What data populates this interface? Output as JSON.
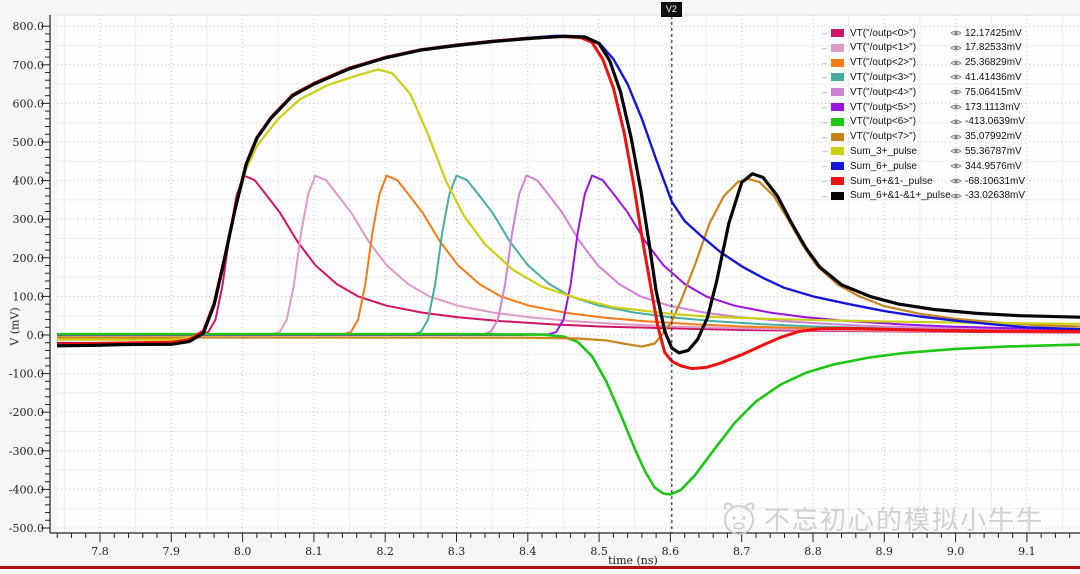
{
  "window": {
    "footer_bar_color": "#b31111"
  },
  "watermark": {
    "text": "不忘初心的模拟小牛牛",
    "logo": "cow-face-logo"
  },
  "chart_data": {
    "type": "line",
    "title": "",
    "xlabel": "time (ns)",
    "ylabel": "V (mV)",
    "xlim": [
      7.74,
      9.175
    ],
    "ylim": [
      -500,
      800
    ],
    "grid": "minor solid + major dotted",
    "legend_position": "top-right",
    "x_tick_values": [
      7.8,
      7.9,
      8.0,
      8.1,
      8.2,
      8.3,
      8.4,
      8.5,
      8.6,
      8.7,
      8.8,
      8.9,
      9.0,
      9.1
    ],
    "x_tick_labels": [
      "7.8",
      "7.9",
      "8.0",
      "8.1",
      "8.2",
      "8.3",
      "8.4",
      "8.5",
      "8.6",
      "8.7",
      "8.8",
      "8.9",
      "9.0",
      "9.1"
    ],
    "y_tick_values": [
      800,
      700,
      600,
      500,
      400,
      300,
      200,
      100,
      0,
      -100,
      -200,
      -300,
      -400,
      -500
    ],
    "y_tick_labels": [
      "800.0",
      "700.0",
      "600.0",
      "500.0",
      "400.0",
      "300.0",
      "200.0",
      "100.0",
      "0.0",
      "-100.0",
      "-200.0",
      "-300.0",
      "-400.0",
      "-500.0"
    ],
    "marker": {
      "label": "V2",
      "time": 8.602
    },
    "pulse_shape": [
      [
        -1,
        0
      ],
      [
        -0.1,
        0
      ],
      [
        -0.06,
        2
      ],
      [
        -0.05,
        8
      ],
      [
        -0.04,
        40
      ],
      [
        -0.03,
        130
      ],
      [
        -0.02,
        265
      ],
      [
        -0.01,
        365
      ],
      [
        0,
        413
      ],
      [
        0.015,
        401
      ],
      [
        0.03,
        366
      ],
      [
        0.05,
        318
      ],
      [
        0.075,
        242
      ],
      [
        0.1,
        181
      ],
      [
        0.13,
        132
      ],
      [
        0.16,
        100
      ],
      [
        0.2,
        76
      ],
      [
        0.25,
        58
      ],
      [
        0.3,
        46
      ],
      [
        0.36,
        36
      ],
      [
        0.43,
        28
      ],
      [
        0.5,
        22
      ],
      [
        0.6,
        17
      ],
      [
        0.7,
        13
      ],
      [
        0.85,
        10
      ],
      [
        1,
        8
      ],
      [
        1.2,
        6
      ]
    ],
    "series": [
      {
        "id": "outp0",
        "name": "VT(\"/outp<0>\")",
        "color": "#d01467",
        "width": 2,
        "pulse_t0": 8.002,
        "readout": "12.17425mV"
      },
      {
        "id": "outp1",
        "name": "VT(\"/outp<1>\")",
        "color": "#df9aca",
        "width": 2,
        "pulse_t0": 8.102,
        "readout": "17.82533mV"
      },
      {
        "id": "outp2",
        "name": "VT(\"/outp<2>\")",
        "color": "#f57b16",
        "width": 2,
        "pulse_t0": 8.202,
        "readout": "25.36829mV"
      },
      {
        "id": "outp3",
        "name": "VT(\"/outp<3>\")",
        "color": "#46ada3",
        "width": 2,
        "pulse_t0": 8.3,
        "readout": "41.41436mV"
      },
      {
        "id": "outp4",
        "name": "VT(\"/outp<4>\")",
        "color": "#d083d6",
        "width": 2,
        "pulse_t0": 8.398,
        "readout": "75.06415mV"
      },
      {
        "id": "outp5",
        "name": "VT(\"/outp<5>\")",
        "color": "#9b14e0",
        "width": 2,
        "pulse_t0": 8.49,
        "readout": "173.1113mV"
      },
      {
        "id": "outp6",
        "name": "VT(\"/outp<6>\")",
        "color": "#1ec616",
        "width": 2.6,
        "readout": "-413.0639mV",
        "points": [
          [
            7.74,
            2
          ],
          [
            8.3,
            2
          ],
          [
            8.42,
            1
          ],
          [
            8.45,
            -4
          ],
          [
            8.47,
            -18
          ],
          [
            8.49,
            -55
          ],
          [
            8.51,
            -120
          ],
          [
            8.53,
            -205
          ],
          [
            8.55,
            -295
          ],
          [
            8.565,
            -355
          ],
          [
            8.578,
            -395
          ],
          [
            8.59,
            -411
          ],
          [
            8.6,
            -413
          ],
          [
            8.615,
            -401
          ],
          [
            8.635,
            -362
          ],
          [
            8.66,
            -300
          ],
          [
            8.69,
            -228
          ],
          [
            8.72,
            -172
          ],
          [
            8.755,
            -128
          ],
          [
            8.79,
            -98
          ],
          [
            8.83,
            -76
          ],
          [
            8.88,
            -58
          ],
          [
            8.93,
            -46
          ],
          [
            9,
            -36
          ],
          [
            9.07,
            -30
          ],
          [
            9.175,
            -25
          ]
        ]
      },
      {
        "id": "outp7",
        "name": "VT(\"/outp<7>\")",
        "color": "#c8841a",
        "width": 2.2,
        "readout": "35.07992mV",
        "points": [
          [
            7.74,
            -6
          ],
          [
            8.4,
            -7
          ],
          [
            8.47,
            -9
          ],
          [
            8.51,
            -14
          ],
          [
            8.54,
            -24
          ],
          [
            8.56,
            -30
          ],
          [
            8.578,
            -22
          ],
          [
            8.59,
            5
          ],
          [
            8.602,
            35
          ],
          [
            8.615,
            90
          ],
          [
            8.635,
            185
          ],
          [
            8.655,
            290
          ],
          [
            8.675,
            360
          ],
          [
            8.695,
            397
          ],
          [
            8.71,
            404
          ],
          [
            8.725,
            396
          ],
          [
            8.745,
            360
          ],
          [
            8.765,
            300
          ],
          [
            8.785,
            235
          ],
          [
            8.805,
            180
          ],
          [
            8.835,
            130
          ],
          [
            8.865,
            100
          ],
          [
            8.9,
            75
          ],
          [
            8.95,
            55
          ],
          [
            9,
            42
          ],
          [
            9.06,
            32
          ],
          [
            9.12,
            25
          ],
          [
            9.175,
            22
          ]
        ]
      },
      {
        "id": "sum3",
        "name": "Sum_3+_pulse",
        "color": "#cdd011",
        "width": 2.2,
        "readout": "55.36787mV",
        "points": [
          [
            7.74,
            -12
          ],
          [
            7.9,
            -12
          ],
          [
            7.925,
            -8
          ],
          [
            7.945,
            10
          ],
          [
            7.96,
            80
          ],
          [
            7.975,
            200
          ],
          [
            7.99,
            330
          ],
          [
            8.005,
            430
          ],
          [
            8.02,
            490
          ],
          [
            8.05,
            560
          ],
          [
            8.08,
            610
          ],
          [
            8.12,
            648
          ],
          [
            8.16,
            672
          ],
          [
            8.19,
            688
          ],
          [
            8.21,
            678
          ],
          [
            8.235,
            625
          ],
          [
            8.26,
            520
          ],
          [
            8.285,
            400
          ],
          [
            8.31,
            310
          ],
          [
            8.34,
            235
          ],
          [
            8.38,
            168
          ],
          [
            8.42,
            125
          ],
          [
            8.47,
            95
          ],
          [
            8.52,
            72
          ],
          [
            8.6,
            55
          ],
          [
            8.65,
            48
          ],
          [
            8.75,
            41
          ],
          [
            8.9,
            35
          ],
          [
            9.05,
            31
          ],
          [
            9.175,
            29
          ]
        ]
      },
      {
        "id": "sum6",
        "name": "Sum_6+_pulse",
        "color": "#1515d8",
        "width": 2.4,
        "readout": "344.9576mV",
        "points": [
          [
            7.74,
            -21
          ],
          [
            7.9,
            -21
          ],
          [
            7.925,
            -14
          ],
          [
            7.945,
            8
          ],
          [
            7.96,
            80
          ],
          [
            7.975,
            205
          ],
          [
            7.99,
            335
          ],
          [
            8.005,
            445
          ],
          [
            8.02,
            512
          ],
          [
            8.04,
            565
          ],
          [
            8.07,
            622
          ],
          [
            8.1,
            652
          ],
          [
            8.15,
            692
          ],
          [
            8.2,
            720
          ],
          [
            8.25,
            740
          ],
          [
            8.3,
            752
          ],
          [
            8.35,
            762
          ],
          [
            8.4,
            770
          ],
          [
            8.44,
            775
          ],
          [
            8.48,
            773
          ],
          [
            8.5,
            757
          ],
          [
            8.52,
            715
          ],
          [
            8.54,
            650
          ],
          [
            8.56,
            560
          ],
          [
            8.58,
            455
          ],
          [
            8.602,
            345
          ],
          [
            8.62,
            295
          ],
          [
            8.64,
            262
          ],
          [
            8.67,
            215
          ],
          [
            8.7,
            178
          ],
          [
            8.73,
            148
          ],
          [
            8.76,
            122
          ],
          [
            8.8,
            100
          ],
          [
            8.85,
            80
          ],
          [
            8.9,
            62
          ],
          [
            8.95,
            48
          ],
          [
            9,
            37
          ],
          [
            9.05,
            28
          ],
          [
            9.1,
            20
          ],
          [
            9.175,
            15
          ]
        ]
      },
      {
        "id": "sum61",
        "name": "Sum_6+&1-_pulse",
        "color": "#ee1111",
        "width": 3,
        "readout": "-68.10631mV",
        "points": [
          [
            7.74,
            -23
          ],
          [
            7.79,
            -22
          ],
          [
            7.85,
            -20
          ],
          [
            7.9,
            -19
          ],
          [
            7.925,
            -12
          ],
          [
            7.945,
            10
          ],
          [
            7.96,
            82
          ],
          [
            7.975,
            204
          ],
          [
            7.99,
            332
          ],
          [
            8.005,
            444
          ],
          [
            8.02,
            512
          ],
          [
            8.04,
            564
          ],
          [
            8.07,
            622
          ],
          [
            8.1,
            652
          ],
          [
            8.15,
            692
          ],
          [
            8.2,
            719
          ],
          [
            8.25,
            739
          ],
          [
            8.3,
            751
          ],
          [
            8.35,
            761
          ],
          [
            8.4,
            769
          ],
          [
            8.45,
            773
          ],
          [
            8.475,
            770
          ],
          [
            8.49,
            758
          ],
          [
            8.505,
            715
          ],
          [
            8.52,
            640
          ],
          [
            8.535,
            525
          ],
          [
            8.548,
            395
          ],
          [
            8.56,
            255
          ],
          [
            8.572,
            130
          ],
          [
            8.582,
            25
          ],
          [
            8.592,
            -45
          ],
          [
            8.602,
            -68
          ],
          [
            8.615,
            -80
          ],
          [
            8.63,
            -87
          ],
          [
            8.65,
            -84
          ],
          [
            8.67,
            -73
          ],
          [
            8.7,
            -51
          ],
          [
            8.73,
            -26
          ],
          [
            8.755,
            -6
          ],
          [
            8.78,
            9
          ],
          [
            8.81,
            16
          ],
          [
            8.85,
            17
          ],
          [
            8.9,
            15
          ],
          [
            8.97,
            12
          ],
          [
            9.05,
            10
          ],
          [
            9.175,
            9
          ]
        ]
      },
      {
        "id": "sum611",
        "name": "Sum_6+&1-&1+_pulse",
        "color": "#050505",
        "width": 3.2,
        "readout": "-33.02638mV",
        "points": [
          [
            7.74,
            -28
          ],
          [
            7.79,
            -27
          ],
          [
            7.83,
            -25
          ],
          [
            7.9,
            -24
          ],
          [
            7.925,
            -17
          ],
          [
            7.945,
            5
          ],
          [
            7.96,
            78
          ],
          [
            7.975,
            200
          ],
          [
            7.99,
            330
          ],
          [
            8.005,
            442
          ],
          [
            8.02,
            510
          ],
          [
            8.04,
            562
          ],
          [
            8.07,
            620
          ],
          [
            8.1,
            650
          ],
          [
            8.15,
            690
          ],
          [
            8.2,
            718
          ],
          [
            8.25,
            738
          ],
          [
            8.3,
            750
          ],
          [
            8.35,
            760
          ],
          [
            8.4,
            768
          ],
          [
            8.45,
            774
          ],
          [
            8.48,
            772
          ],
          [
            8.5,
            755
          ],
          [
            8.515,
            710
          ],
          [
            8.53,
            630
          ],
          [
            8.545,
            510
          ],
          [
            8.558,
            380
          ],
          [
            8.57,
            240
          ],
          [
            8.58,
            115
          ],
          [
            8.592,
            10
          ],
          [
            8.602,
            -34
          ],
          [
            8.612,
            -46
          ],
          [
            8.625,
            -40
          ],
          [
            8.638,
            -12
          ],
          [
            8.652,
            45
          ],
          [
            8.665,
            140
          ],
          [
            8.682,
            290
          ],
          [
            8.7,
            395
          ],
          [
            8.715,
            418
          ],
          [
            8.73,
            408
          ],
          [
            8.75,
            360
          ],
          [
            8.77,
            290
          ],
          [
            8.79,
            225
          ],
          [
            8.81,
            175
          ],
          [
            8.84,
            130
          ],
          [
            8.88,
            100
          ],
          [
            8.92,
            80
          ],
          [
            8.97,
            66
          ],
          [
            9.03,
            56
          ],
          [
            9.09,
            50
          ],
          [
            9.175,
            46
          ]
        ]
      }
    ]
  }
}
